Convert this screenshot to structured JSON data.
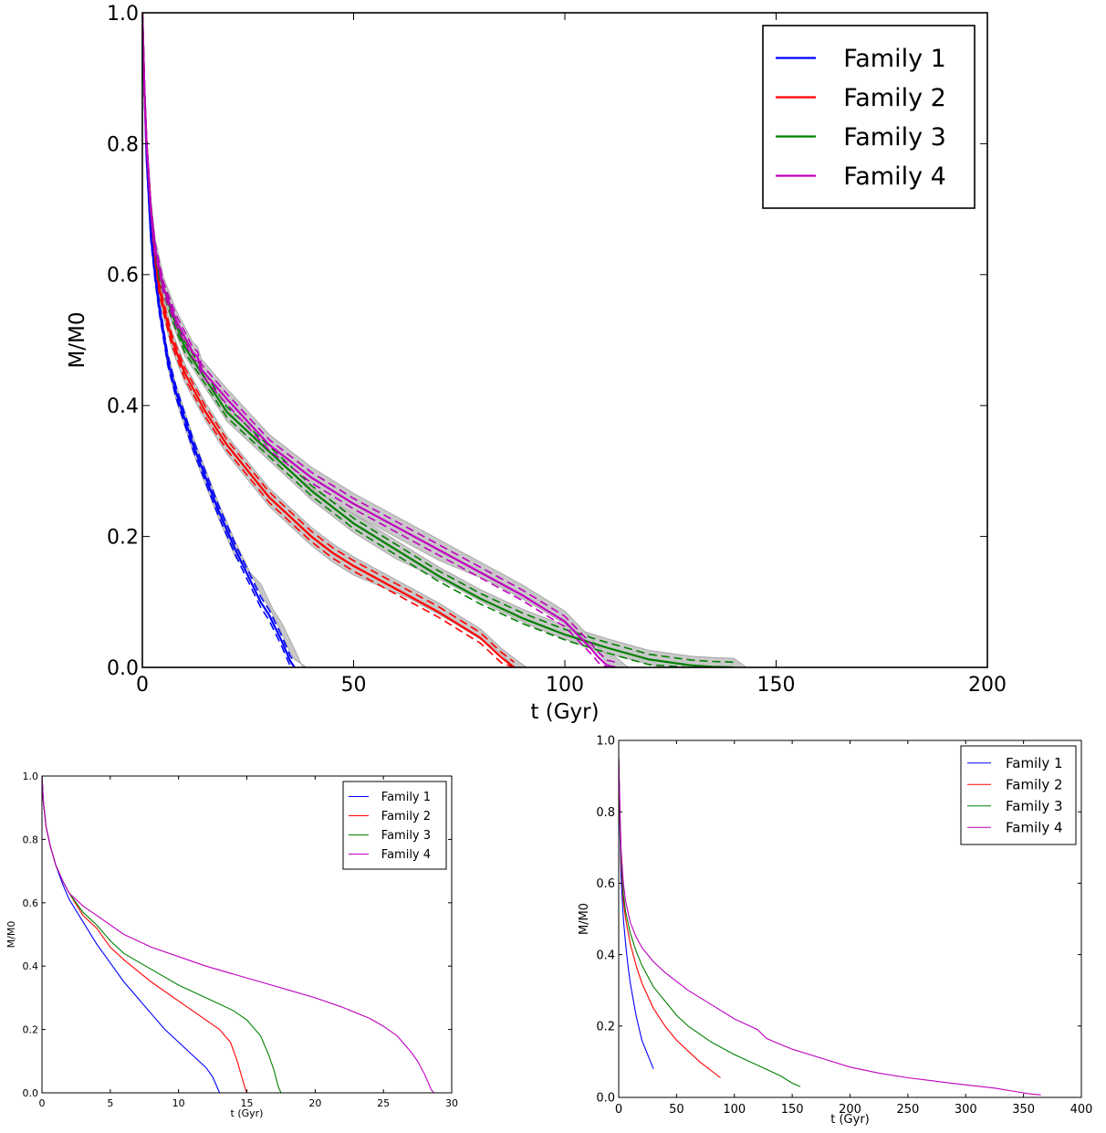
{
  "chart_data": [
    {
      "type": "line",
      "xlabel": "t (Gyr)",
      "ylabel": "M/M0",
      "xlim": [
        0,
        200
      ],
      "ylim": [
        0,
        1.0
      ],
      "xticks": [
        0,
        50,
        100,
        150,
        200
      ],
      "yticks": [
        0.0,
        0.2,
        0.4,
        0.6,
        0.8,
        1.0
      ],
      "xtick_labels": [
        "0",
        "50",
        "100",
        "150",
        "200"
      ],
      "ytick_labels": [
        "0.0",
        "0.2",
        "0.4",
        "0.6",
        "0.8",
        "1.0"
      ],
      "legend_position": "top-right",
      "grid": false,
      "series": [
        {
          "name": "Family 1",
          "color": "#0000ff",
          "x": [
            0,
            0.5,
            1,
            2,
            3,
            4,
            5,
            6,
            8,
            10,
            12,
            15,
            18,
            20,
            22,
            25,
            28,
            30,
            33,
            35,
            36
          ],
          "y": [
            1.0,
            0.88,
            0.78,
            0.66,
            0.6,
            0.55,
            0.51,
            0.47,
            0.42,
            0.38,
            0.34,
            0.29,
            0.24,
            0.21,
            0.18,
            0.14,
            0.1,
            0.08,
            0.04,
            0.01,
            0.0
          ],
          "band": 0.012
        },
        {
          "name": "Family 2",
          "color": "#ff0000",
          "x": [
            0,
            0.5,
            1,
            2,
            3,
            4,
            5,
            7,
            10,
            15,
            20,
            25,
            30,
            35,
            40,
            45,
            50,
            60,
            70,
            80,
            85,
            88
          ],
          "y": [
            1.0,
            0.88,
            0.8,
            0.7,
            0.63,
            0.58,
            0.55,
            0.5,
            0.45,
            0.39,
            0.34,
            0.3,
            0.26,
            0.23,
            0.2,
            0.175,
            0.155,
            0.12,
            0.085,
            0.045,
            0.015,
            0.0
          ],
          "band": 0.014
        },
        {
          "name": "Family 3",
          "color": "#008000",
          "x": [
            0,
            0.5,
            1,
            2,
            3,
            4,
            5,
            7,
            10,
            15,
            20,
            30,
            40,
            50,
            60,
            70,
            80,
            90,
            100,
            110,
            120,
            130,
            135,
            140
          ],
          "y": [
            1.0,
            0.88,
            0.8,
            0.7,
            0.64,
            0.6,
            0.58,
            0.54,
            0.49,
            0.44,
            0.39,
            0.33,
            0.27,
            0.22,
            0.18,
            0.14,
            0.105,
            0.075,
            0.05,
            0.03,
            0.012,
            0.003,
            0.001,
            0.0
          ],
          "band": 0.014
        },
        {
          "name": "Family 4",
          "color": "#bf00bf",
          "x": [
            0,
            0.5,
            1,
            2,
            3,
            5,
            8,
            12,
            13,
            14,
            20,
            30,
            40,
            50,
            60,
            70,
            80,
            90,
            95,
            100,
            103,
            106,
            108,
            110,
            112
          ],
          "y": [
            1.0,
            0.88,
            0.8,
            0.7,
            0.64,
            0.58,
            0.53,
            0.48,
            0.475,
            0.455,
            0.41,
            0.34,
            0.29,
            0.25,
            0.215,
            0.18,
            0.145,
            0.11,
            0.09,
            0.07,
            0.05,
            0.03,
            0.015,
            0.003,
            0.0
          ],
          "band": 0.016
        }
      ]
    },
    {
      "type": "line",
      "xlabel": "t (Gyr)",
      "ylabel": "M/M0",
      "xlim": [
        0,
        30
      ],
      "ylim": [
        0,
        1.0
      ],
      "xticks": [
        0,
        5,
        10,
        15,
        20,
        25,
        30
      ],
      "yticks": [
        0.0,
        0.2,
        0.4,
        0.6,
        0.8,
        1.0
      ],
      "xtick_labels": [
        "0",
        "5",
        "10",
        "15",
        "20",
        "25",
        "30"
      ],
      "ytick_labels": [
        "0.0",
        "0.2",
        "0.4",
        "0.6",
        "0.8",
        "1.0"
      ],
      "legend_position": "top-right",
      "grid": false,
      "series": [
        {
          "name": "Family 1",
          "color": "#0000ff",
          "x": [
            0,
            0.1,
            0.3,
            0.6,
            1,
            1.5,
            2,
            3,
            4,
            5,
            6,
            7,
            8,
            9,
            10,
            11,
            12,
            12.5,
            12.9,
            13
          ],
          "y": [
            1.0,
            0.92,
            0.84,
            0.78,
            0.72,
            0.66,
            0.61,
            0.54,
            0.47,
            0.41,
            0.35,
            0.3,
            0.25,
            0.2,
            0.16,
            0.12,
            0.08,
            0.05,
            0.01,
            0.0
          ],
          "band": 0
        },
        {
          "name": "Family 2",
          "color": "#ff0000",
          "x": [
            0,
            0.1,
            0.3,
            0.6,
            1,
            1.5,
            2,
            3,
            4,
            5,
            6,
            8,
            10,
            12,
            13,
            13.8,
            14.3,
            14.7,
            14.9,
            15
          ],
          "y": [
            1.0,
            0.92,
            0.84,
            0.78,
            0.72,
            0.67,
            0.63,
            0.56,
            0.52,
            0.46,
            0.42,
            0.35,
            0.29,
            0.23,
            0.2,
            0.16,
            0.1,
            0.04,
            0.01,
            0.0
          ],
          "band": 0
        },
        {
          "name": "Family 3",
          "color": "#008000",
          "x": [
            0,
            0.1,
            0.3,
            0.6,
            1,
            1.5,
            2,
            3,
            4,
            5,
            6,
            8,
            10,
            12,
            14,
            15,
            16,
            16.6,
            17,
            17.3,
            17.5
          ],
          "y": [
            1.0,
            0.92,
            0.84,
            0.78,
            0.72,
            0.67,
            0.63,
            0.57,
            0.53,
            0.48,
            0.44,
            0.39,
            0.34,
            0.3,
            0.26,
            0.23,
            0.18,
            0.12,
            0.07,
            0.02,
            0.0
          ],
          "band": 0
        },
        {
          "name": "Family 4",
          "color": "#bf00bf",
          "x": [
            0,
            0.1,
            0.3,
            0.6,
            1,
            1.5,
            2,
            3,
            4,
            5,
            6,
            8,
            10,
            12,
            14,
            16,
            18,
            20,
            22,
            24,
            25,
            26,
            27,
            27.5,
            28,
            28.3,
            28.5,
            28.7
          ],
          "y": [
            1.0,
            0.92,
            0.84,
            0.78,
            0.72,
            0.67,
            0.63,
            0.59,
            0.56,
            0.53,
            0.5,
            0.46,
            0.43,
            0.4,
            0.375,
            0.35,
            0.325,
            0.3,
            0.27,
            0.235,
            0.21,
            0.18,
            0.13,
            0.1,
            0.06,
            0.03,
            0.01,
            0.0
          ],
          "band": 0
        }
      ]
    },
    {
      "type": "line",
      "xlabel": "t (Gyr)",
      "ylabel": "M/M0",
      "xlim": [
        0,
        400
      ],
      "ylim": [
        0,
        1.0
      ],
      "xticks": [
        0,
        50,
        100,
        150,
        200,
        250,
        300,
        350,
        400
      ],
      "yticks": [
        0.0,
        0.2,
        0.4,
        0.6,
        0.8,
        1.0
      ],
      "xtick_labels": [
        "0",
        "50",
        "100",
        "150",
        "200",
        "250",
        "300",
        "350",
        "400"
      ],
      "ytick_labels": [
        "0.0",
        "0.2",
        "0.4",
        "0.6",
        "0.8",
        "1.0"
      ],
      "legend_position": "top-right",
      "grid": false,
      "series": [
        {
          "name": "Family 1",
          "color": "#0000ff",
          "x": [
            0,
            1,
            2,
            4,
            6,
            8,
            10,
            15,
            20,
            25,
            30
          ],
          "y": [
            0.95,
            0.75,
            0.62,
            0.5,
            0.43,
            0.37,
            0.32,
            0.23,
            0.16,
            0.12,
            0.08
          ],
          "band": 0
        },
        {
          "name": "Family 2",
          "color": "#ff0000",
          "x": [
            0,
            1,
            2,
            4,
            6,
            10,
            15,
            20,
            30,
            40,
            50,
            60,
            70,
            80,
            88
          ],
          "y": [
            0.95,
            0.78,
            0.66,
            0.55,
            0.5,
            0.43,
            0.37,
            0.32,
            0.25,
            0.2,
            0.16,
            0.13,
            0.1,
            0.075,
            0.055
          ],
          "band": 0
        },
        {
          "name": "Family 3",
          "color": "#008000",
          "x": [
            0,
            1,
            2,
            4,
            6,
            10,
            15,
            20,
            30,
            40,
            50,
            60,
            80,
            100,
            120,
            140,
            150,
            157
          ],
          "y": [
            0.95,
            0.8,
            0.68,
            0.57,
            0.52,
            0.46,
            0.41,
            0.37,
            0.31,
            0.27,
            0.23,
            0.2,
            0.155,
            0.12,
            0.09,
            0.06,
            0.04,
            0.03
          ],
          "band": 0
        },
        {
          "name": "Family 4",
          "color": "#bf00bf",
          "x": [
            0,
            1,
            2,
            4,
            6,
            10,
            15,
            20,
            30,
            40,
            60,
            80,
            100,
            120,
            128,
            135,
            150,
            175,
            200,
            225,
            250,
            275,
            300,
            325,
            340,
            355,
            365
          ],
          "y": [
            0.95,
            0.82,
            0.7,
            0.6,
            0.55,
            0.49,
            0.45,
            0.42,
            0.38,
            0.35,
            0.3,
            0.26,
            0.22,
            0.19,
            0.165,
            0.155,
            0.135,
            0.11,
            0.085,
            0.068,
            0.055,
            0.045,
            0.035,
            0.026,
            0.018,
            0.01,
            0.007
          ],
          "band": 0
        }
      ]
    }
  ]
}
